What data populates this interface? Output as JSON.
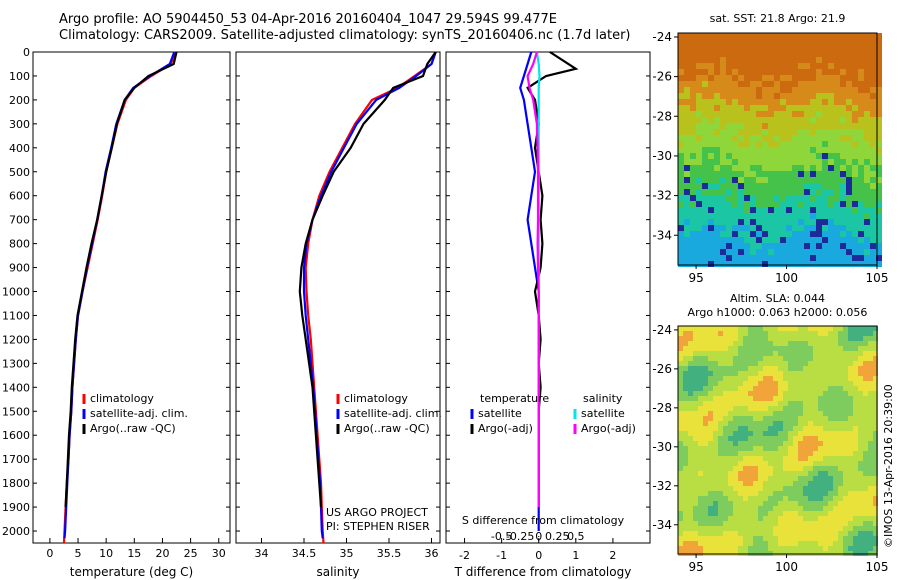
{
  "header": {
    "line1": "Argo profile: AO 5904450_53 04-Apr-2016 20160404_1047 29.594S 99.477E",
    "line2": "Climatology: CARS2009. Satellite-adjusted climatology: synTS_20160406.nc (1.7d later)"
  },
  "stamp": "©IMOS 13-Apr-2016 20:39:00",
  "colors": {
    "climatology": "#ff0000",
    "satellite": "#0000ff",
    "argo": "#000000",
    "sal_satellite": "#00e5ee",
    "sal_argo": "#ff00ff"
  },
  "chart_data": [
    {
      "type": "line",
      "xlabel": "temperature (deg C)",
      "ylabel": "",
      "xlim": [
        -3,
        32
      ],
      "ylim": [
        2050,
        0
      ],
      "xticks": [
        0,
        5,
        10,
        15,
        20,
        25,
        30
      ],
      "yticks": [
        0,
        100,
        200,
        300,
        400,
        500,
        600,
        700,
        800,
        900,
        1000,
        1100,
        1200,
        1300,
        1400,
        1500,
        1600,
        1700,
        1800,
        1900,
        2000
      ],
      "legend": [
        "climatology",
        "satellite-adj. clim.",
        "Argo(..raw -QC)"
      ],
      "series": [
        {
          "name": "climatology",
          "x": [
            22.3,
            21.5,
            18,
            15,
            13.5,
            12,
            11,
            10,
            9.3,
            8.5,
            7.6,
            6.7,
            5.8,
            5,
            4.6,
            4.3,
            4,
            3.8,
            3.5,
            3.3,
            3,
            2.8,
            2.6,
            2.5
          ],
          "y": [
            0,
            50,
            100,
            150,
            200,
            300,
            400,
            500,
            600,
            700,
            800,
            900,
            1000,
            1100,
            1200,
            1300,
            1400,
            1500,
            1600,
            1700,
            1800,
            1900,
            2000,
            2050
          ]
        },
        {
          "name": "satellite-adj. clim.",
          "x": [
            22.1,
            21.3,
            17.8,
            14.8,
            13.3,
            11.8,
            10.9,
            9.9,
            9.2,
            8.4,
            7.5,
            6.6,
            5.8,
            5,
            4.6,
            4.3,
            4,
            3.8,
            3.5,
            3.3,
            3.1,
            2.9,
            2.7,
            2.6
          ],
          "y": [
            0,
            50,
            100,
            150,
            200,
            300,
            400,
            500,
            600,
            700,
            800,
            900,
            1000,
            1100,
            1200,
            1300,
            1400,
            1500,
            1600,
            1700,
            1800,
            1900,
            2000,
            2030
          ]
        },
        {
          "name": "Argo(..raw -QC)",
          "x": [
            22.5,
            22,
            17.5,
            15,
            13.3,
            11.9,
            11,
            10,
            9.2,
            8.4,
            7.4,
            6.5,
            5.7,
            4.9,
            4.5,
            4.2,
            3.9,
            3.7,
            3.4,
            3.2,
            3,
            2.8
          ],
          "y": [
            0,
            50,
            100,
            150,
            200,
            300,
            400,
            500,
            600,
            700,
            800,
            900,
            1000,
            1100,
            1200,
            1300,
            1400,
            1500,
            1600,
            1700,
            1800,
            1900
          ]
        }
      ]
    },
    {
      "type": "line",
      "xlabel": "salinity",
      "xlim": [
        33.7,
        36.1
      ],
      "ylim": [
        2050,
        0
      ],
      "xticks": [
        34,
        34.5,
        35,
        35.5,
        36
      ],
      "legend": [
        "climatology",
        "satellite-adj. clim.",
        "Argo(..raw -QC)"
      ],
      "annotation": [
        "US ARGO PROJECT",
        "PI: STEPHEN RISER"
      ],
      "series": [
        {
          "name": "climatology",
          "x": [
            36.05,
            36,
            35.8,
            35.6,
            35.3,
            35.1,
            34.95,
            34.8,
            34.68,
            34.6,
            34.55,
            34.52,
            34.53,
            34.55,
            34.58,
            34.6,
            34.62,
            34.64,
            34.66,
            34.68,
            34.7,
            34.71,
            34.72,
            34.73
          ],
          "y": [
            0,
            50,
            100,
            150,
            200,
            300,
            400,
            500,
            600,
            700,
            800,
            900,
            1000,
            1100,
            1200,
            1300,
            1400,
            1500,
            1600,
            1700,
            1800,
            1900,
            2000,
            2050
          ]
        },
        {
          "name": "satellite-adj. clim.",
          "x": [
            36.05,
            36,
            35.82,
            35.62,
            35.35,
            35.12,
            34.97,
            34.82,
            34.7,
            34.6,
            34.53,
            34.5,
            34.5,
            34.52,
            34.55,
            34.58,
            34.61,
            34.63,
            34.65,
            34.67,
            34.69,
            34.7,
            34.71,
            34.72
          ],
          "y": [
            0,
            50,
            100,
            150,
            200,
            300,
            400,
            500,
            600,
            700,
            800,
            900,
            1000,
            1100,
            1200,
            1300,
            1400,
            1500,
            1600,
            1700,
            1800,
            1900,
            2000,
            2030
          ]
        },
        {
          "name": "Argo(..raw -QC)",
          "x": [
            36.05,
            35.95,
            35.9,
            35.55,
            35.45,
            35.2,
            35.05,
            34.85,
            34.72,
            34.6,
            34.52,
            34.47,
            34.45,
            34.48,
            34.52,
            34.56,
            34.6,
            34.62,
            34.64,
            34.66,
            34.68,
            34.7
          ],
          "y": [
            0,
            50,
            100,
            150,
            200,
            300,
            400,
            500,
            600,
            700,
            800,
            900,
            1000,
            1100,
            1200,
            1300,
            1400,
            1500,
            1600,
            1700,
            1800,
            1900
          ]
        }
      ]
    },
    {
      "type": "line",
      "xlabel": "T difference from climatology",
      "top_label": "S difference from climatology",
      "xlim": [
        -2.5,
        3
      ],
      "ylim": [
        2050,
        0
      ],
      "xticks": [
        -2,
        -1,
        0,
        1,
        2
      ],
      "top_ticks": [
        "-0.5",
        "-0.25",
        "0",
        "0.25",
        "0.5"
      ],
      "legend": {
        "temperature": [
          "satellite",
          "Argo(-adj)"
        ],
        "salinity": [
          "satellite",
          "Argo(-adj)"
        ]
      },
      "series": [
        {
          "name": "temperature satellite",
          "x": [
            -0.2,
            -0.3,
            -0.4,
            -0.5,
            -0.4,
            -0.3,
            -0.2,
            -0.1,
            -0.2,
            -0.3,
            -0.2,
            -0.1,
            0,
            0,
            0,
            0,
            0,
            0,
            0,
            0,
            0,
            0
          ],
          "y": [
            0,
            50,
            100,
            150,
            200,
            300,
            400,
            500,
            600,
            700,
            800,
            900,
            1000,
            1100,
            1200,
            1300,
            1400,
            1500,
            1600,
            1700,
            1800,
            2000
          ]
        },
        {
          "name": "temperature Argo(-adj)",
          "x": [
            0.3,
            1,
            0.2,
            -0.3,
            -0.1,
            0,
            -0.1,
            0,
            0.1,
            0.05,
            0.1,
            0.05,
            -0.1,
            0,
            0.05,
            0,
            0.05,
            0,
            0,
            0,
            0
          ],
          "y": [
            0,
            70,
            100,
            150,
            200,
            300,
            400,
            500,
            600,
            700,
            800,
            900,
            1000,
            1100,
            1200,
            1300,
            1400,
            1500,
            1600,
            1700,
            1900
          ]
        },
        {
          "name": "salinity satellite",
          "x": [
            -0.05,
            0,
            0.02,
            0,
            0,
            0,
            0,
            0,
            0,
            0,
            0,
            0,
            0,
            0,
            0,
            0,
            0,
            0,
            0,
            0,
            0
          ],
          "y": [
            0,
            50,
            100,
            150,
            200,
            300,
            400,
            500,
            600,
            700,
            800,
            900,
            1000,
            1100,
            1200,
            1300,
            1400,
            1500,
            1600,
            1700,
            1900
          ]
        },
        {
          "name": "salinity Argo(-adj)",
          "x": [
            -0.05,
            -0.15,
            -0.3,
            -0.25,
            -0.15,
            -0.05,
            -0.03,
            -0.02,
            -0.02,
            -0.02,
            -0.03,
            -0.02,
            0,
            0,
            0,
            0,
            0,
            0,
            0,
            0
          ],
          "y": [
            0,
            50,
            100,
            150,
            200,
            300,
            400,
            500,
            600,
            700,
            800,
            900,
            1000,
            1100,
            1200,
            1300,
            1400,
            1500,
            1700,
            1900
          ]
        }
      ]
    },
    {
      "type": "heatmap",
      "title": "sat. SST: 21.8  Argo: 21.9",
      "xlim": [
        94,
        105
      ],
      "ylim": [
        -35.5,
        -23.8
      ],
      "xticks": [
        95,
        100,
        105
      ],
      "yticks": [
        -24,
        -26,
        -28,
        -30,
        -32,
        -34
      ],
      "argo_position": [
        99.477,
        -29.594
      ],
      "band_colors": [
        "#cc6a10",
        "#d68a1a",
        "#b9c11c",
        "#8fd63a",
        "#44c24a",
        "#1ac6a3",
        "#19a9de",
        "#1c2a9a"
      ]
    },
    {
      "type": "heatmap",
      "title": "Altim. SLA: 0.044",
      "subtitle": "Argo h1000: 0.063 h2000: 0.056",
      "xlim": [
        94,
        105
      ],
      "ylim": [
        -35.5,
        -23.8
      ],
      "xticks": [
        95,
        100,
        105
      ],
      "yticks": [
        -24,
        -26,
        -28,
        -30,
        -32,
        -34
      ],
      "palette": [
        "#43b17f",
        "#7fcc5e",
        "#b9de44",
        "#e8e23a",
        "#f0a43a"
      ]
    }
  ]
}
